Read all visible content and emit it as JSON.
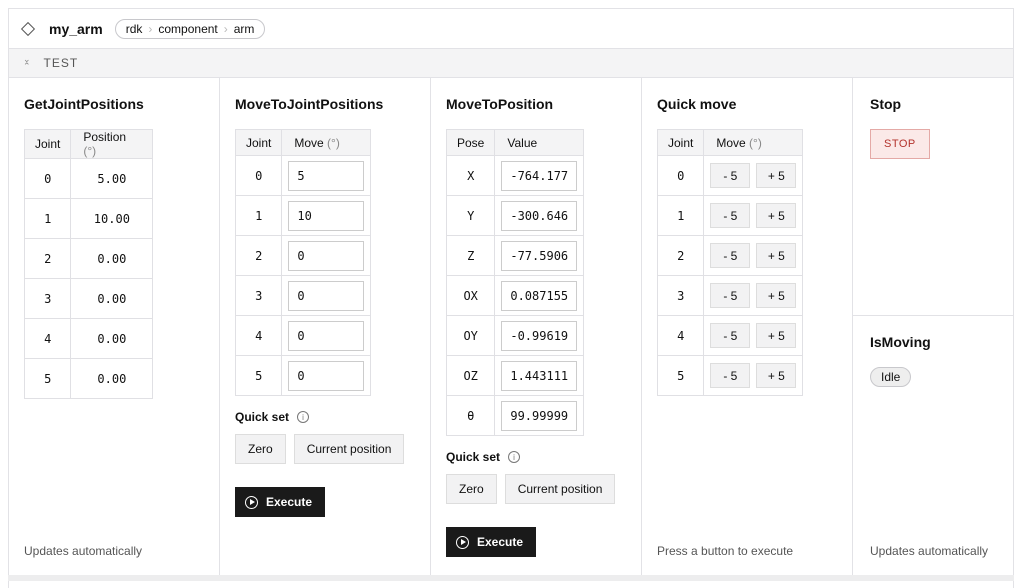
{
  "header": {
    "title": "my_arm",
    "breadcrumbs": [
      "rdk",
      "component",
      "arm"
    ]
  },
  "section": "TEST",
  "get_joint_positions": {
    "title": "GetJointPositions",
    "col_joint": "Joint",
    "col_position": "Position",
    "unit": "(°)",
    "rows": [
      [
        "0",
        "5.00"
      ],
      [
        "1",
        "10.00"
      ],
      [
        "2",
        "0.00"
      ],
      [
        "3",
        "0.00"
      ],
      [
        "4",
        "0.00"
      ],
      [
        "5",
        "0.00"
      ]
    ],
    "footer": "Updates automatically"
  },
  "move_to_joint_positions": {
    "title": "MoveToJointPositions",
    "col_joint": "Joint",
    "col_move": "Move",
    "unit": "(°)",
    "rows": [
      [
        "0",
        "5"
      ],
      [
        "1",
        "10"
      ],
      [
        "2",
        "0"
      ],
      [
        "3",
        "0"
      ],
      [
        "4",
        "0"
      ],
      [
        "5",
        "0"
      ]
    ],
    "quick_set": "Quick set",
    "zero": "Zero",
    "current": "Current position",
    "execute": "Execute"
  },
  "move_to_position": {
    "title": "MoveToPosition",
    "col_pose": "Pose",
    "col_value": "Value",
    "rows": [
      [
        "X",
        "-764.177"
      ],
      [
        "Y",
        "-300.646"
      ],
      [
        "Z",
        "-77.5906"
      ],
      [
        "OX",
        "0.087155"
      ],
      [
        "OY",
        "-0.99619"
      ],
      [
        "OZ",
        "1.443111"
      ],
      [
        "θ",
        "99.99999"
      ]
    ],
    "quick_set": "Quick set",
    "zero": "Zero",
    "current": "Current position",
    "execute": "Execute"
  },
  "quick_move": {
    "title": "Quick move",
    "col_joint": "Joint",
    "col_move": "Move",
    "unit": "(°)",
    "joints": [
      "0",
      "1",
      "2",
      "3",
      "4",
      "5"
    ],
    "minus": "- 5",
    "plus": "+ 5",
    "footer": "Press a button to execute"
  },
  "stop": {
    "title": "Stop",
    "button": "STOP"
  },
  "is_moving": {
    "title": "IsMoving",
    "status": "Idle",
    "footer": "Updates automatically"
  }
}
